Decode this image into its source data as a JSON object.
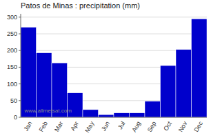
{
  "chart_data": {
    "type": "bar",
    "title": "Patos de Minas : precipitation (mm)",
    "categories": [
      "Jan",
      "Feb",
      "Mar",
      "Apr",
      "May",
      "Jun",
      "Jul",
      "Aug",
      "Sep",
      "Oct",
      "Nov",
      "Dec"
    ],
    "values": [
      270,
      193,
      163,
      73,
      23,
      8,
      13,
      13,
      48,
      155,
      203,
      295
    ],
    "color": "#0000CC",
    "ylim": [
      0,
      310
    ],
    "yticks": [
      0,
      50,
      100,
      150,
      200,
      250,
      300
    ],
    "grid": true,
    "annotations": [
      "www.allmetsat.com"
    ]
  }
}
